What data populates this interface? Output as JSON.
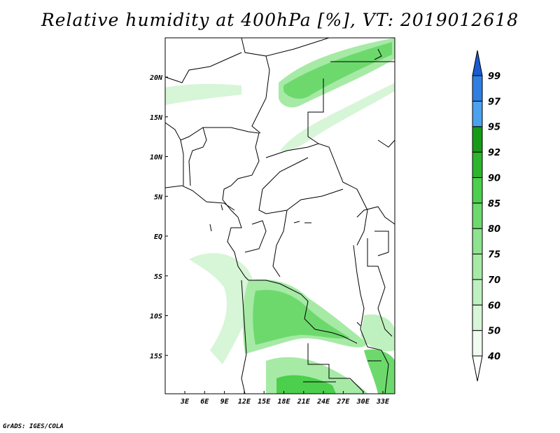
{
  "title": "Relative humidity at 400hPa [%], VT: 2019012618",
  "credit": "GrADS: IGES/COLA",
  "map": {
    "lat_labels": [
      "20N",
      "15N",
      "10N",
      "5N",
      "EQ",
      "5S",
      "10S",
      "15S"
    ],
    "lon_labels": [
      "3E",
      "6E",
      "9E",
      "12E",
      "15E",
      "18E",
      "21E",
      "24E",
      "27E",
      "30E",
      "33E"
    ]
  },
  "colorbar": {
    "levels": [
      "40",
      "50",
      "60",
      "70",
      "75",
      "80",
      "85",
      "90",
      "92",
      "95",
      "97",
      "99"
    ],
    "colors": [
      "#f0fcf0",
      "#d7f5d7",
      "#bff0bf",
      "#a6eaa6",
      "#8ee38e",
      "#6dd96d",
      "#4ccf4c",
      "#2db52d",
      "#179b17",
      "#4aa2ee",
      "#2f7fe3",
      "#1a5ccf"
    ]
  }
}
